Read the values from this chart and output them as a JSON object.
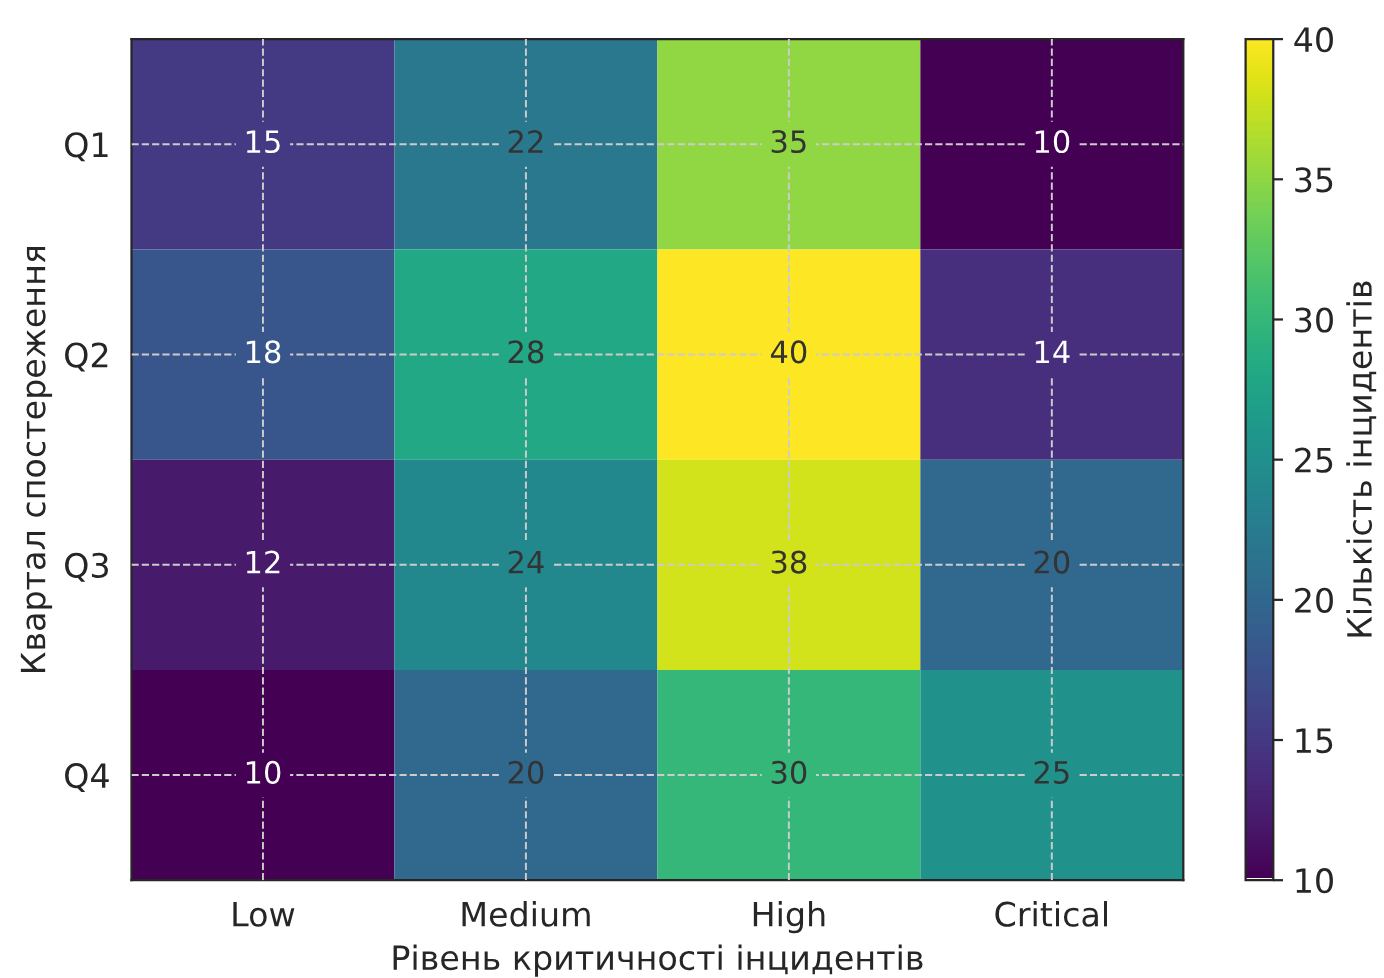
{
  "chart_data": {
    "type": "heatmap",
    "categories": [
      "Low",
      "Medium",
      "High",
      "Critical"
    ],
    "y_categories": [
      "Q1",
      "Q2",
      "Q3",
      "Q4"
    ],
    "cells": [
      [
        15,
        22,
        35,
        10
      ],
      [
        18,
        28,
        40,
        14
      ],
      [
        12,
        24,
        38,
        20
      ],
      [
        10,
        20,
        30,
        25
      ]
    ],
    "xlabel": "Рівень критичності інцидентів",
    "ylabel": "Квартал спостереження",
    "clabel": "Кількість інцидентів",
    "clim": [
      10,
      40
    ],
    "cticks": [
      10,
      15,
      20,
      25,
      30,
      35,
      40
    ],
    "data_labels": true,
    "grid": true
  }
}
